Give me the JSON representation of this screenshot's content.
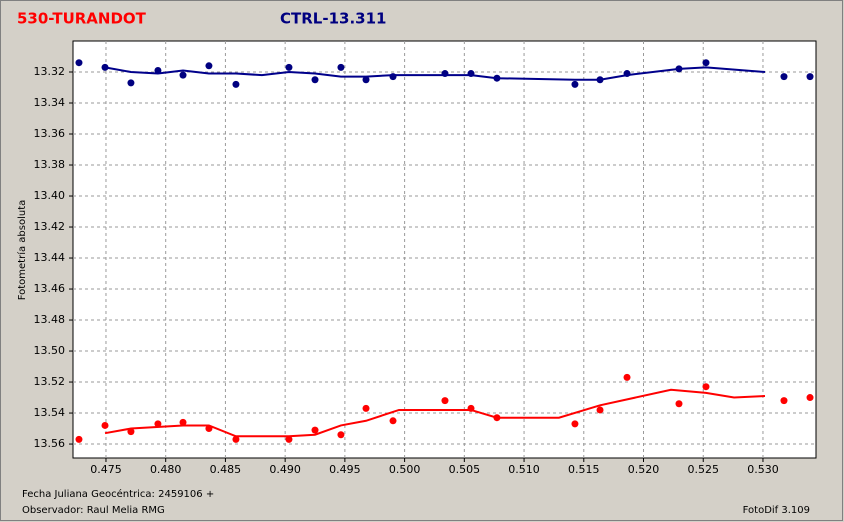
{
  "chart_data": {
    "type": "scatter",
    "ylabel": "Fotometría absoluta",
    "annotations": [
      "Fecha Juliana Geocéntrica: 2459106 +",
      "Observador: Raul Melia RMG",
      "FotoDif 3.109"
    ],
    "xlim": [
      0.47224,
      0.53444
    ],
    "ylim": [
      13.3,
      13.569
    ],
    "y_inverted": true,
    "grid": true,
    "xticks": [
      0.475,
      {
        "value": 0.48,
        "label": "0.480"
      },
      0.485,
      {
        "value": 0.49,
        "label": "0.490"
      },
      0.495,
      {
        "value": 0.5,
        "label": "0.500"
      },
      0.505,
      {
        "value": 0.51,
        "label": "0.510"
      },
      0.515,
      {
        "value": 0.52,
        "label": "0.520"
      },
      0.525,
      {
        "value": 0.53,
        "label": "0.530"
      }
    ],
    "yticks": [
      13.32,
      13.34,
      13.36,
      13.38,
      {
        "value": 13.4,
        "label": "13.40"
      },
      13.42,
      13.44,
      13.46,
      13.48,
      {
        "value": 13.5,
        "label": "13.50"
      },
      13.52,
      13.54,
      13.56
    ],
    "series": [
      {
        "name": "530-TURANDOT",
        "type": "scatter",
        "color": "#ff0000",
        "x": [
          0.47274,
          0.47492,
          0.47709,
          0.47935,
          0.48145,
          0.48362,
          0.48588,
          0.49032,
          0.4925,
          0.49467,
          0.49677,
          0.49903,
          0.50338,
          0.50556,
          0.50773,
          0.51426,
          0.51636,
          0.51862,
          0.52297,
          0.52523,
          0.53176,
          0.53394
        ],
        "values": [
          13.557,
          13.548,
          13.552,
          13.547,
          13.546,
          13.55,
          13.557,
          13.557,
          13.551,
          13.554,
          13.537,
          13.545,
          13.532,
          13.537,
          13.543,
          13.547,
          13.538,
          13.517,
          13.534,
          13.523,
          13.532,
          13.53
        ]
      },
      {
        "name": "CTRL-13.311",
        "type": "scatter",
        "color": "#000080",
        "x": [
          0.47274,
          0.47492,
          0.47709,
          0.47935,
          0.48145,
          0.48362,
          0.48588,
          0.49032,
          0.4925,
          0.49467,
          0.49677,
          0.49903,
          0.50338,
          0.50556,
          0.50773,
          0.51426,
          0.51636,
          0.51862,
          0.52297,
          0.52523,
          0.53176,
          0.53394
        ],
        "values": [
          13.314,
          13.317,
          13.327,
          13.319,
          13.322,
          13.316,
          13.328,
          13.317,
          13.325,
          13.317,
          13.325,
          13.323,
          13.321,
          13.321,
          13.324,
          13.328,
          13.325,
          13.321,
          13.318,
          13.314,
          13.323,
          13.323
        ]
      },
      {
        "type": "line",
        "color": "#ff0000",
        "x": [
          0.47492,
          0.47709,
          0.48145,
          0.48362,
          0.48588,
          0.48806,
          0.49032,
          0.4925,
          0.49467,
          0.49677,
          0.49953,
          0.50556,
          0.50773,
          0.51292,
          0.51636,
          0.5223,
          0.52523,
          0.52758,
          0.53017
        ],
        "values": [
          13.553,
          13.55,
          13.548,
          13.548,
          13.555,
          13.555,
          13.555,
          13.554,
          13.548,
          13.545,
          13.538,
          13.538,
          13.543,
          13.543,
          13.535,
          13.525,
          13.527,
          13.53,
          13.529
        ]
      },
      {
        "type": "line",
        "color": "#00008b",
        "x": [
          0.47492,
          0.47709,
          0.47935,
          0.48145,
          0.48362,
          0.48588,
          0.48806,
          0.49032,
          0.4925,
          0.49467,
          0.49677,
          0.49903,
          0.50338,
          0.50556,
          0.50773,
          0.51426,
          0.51636,
          0.51862,
          0.52297,
          0.52523,
          0.53017
        ],
        "values": [
          13.317,
          13.32,
          13.321,
          13.319,
          13.321,
          13.321,
          13.322,
          13.32,
          13.321,
          13.323,
          13.323,
          13.322,
          13.322,
          13.322,
          13.324,
          13.325,
          13.325,
          13.322,
          13.318,
          13.317,
          13.32
        ]
      }
    ]
  }
}
